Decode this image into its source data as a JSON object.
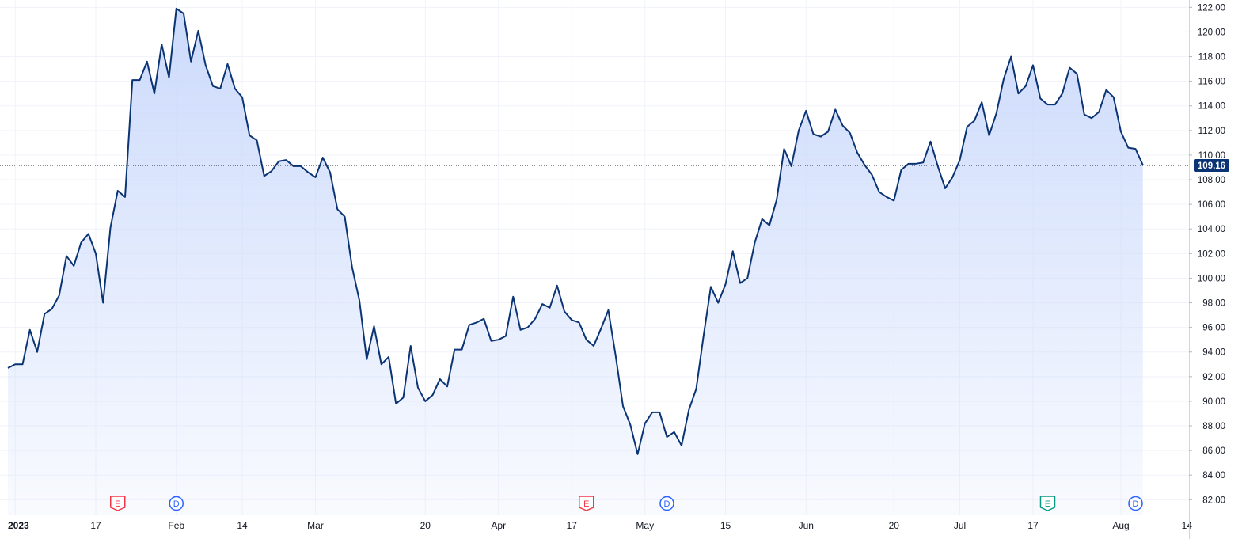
{
  "chart_data": {
    "type": "area",
    "title": "",
    "xlabel": "",
    "ylabel": "",
    "ylim": [
      80.8,
      122.6
    ],
    "grid": true,
    "y_ticks": [
      "82.00",
      "84.00",
      "86.00",
      "88.00",
      "90.00",
      "92.00",
      "94.00",
      "96.00",
      "98.00",
      "100.00",
      "102.00",
      "104.00",
      "106.00",
      "108.00",
      "110.00",
      "112.00",
      "114.00",
      "116.00",
      "118.00",
      "120.00",
      "122.00"
    ],
    "x_ticks": [
      {
        "label": "2023",
        "index": 1
      },
      {
        "label": "17",
        "index": 12
      },
      {
        "label": "Feb",
        "index": 23
      },
      {
        "label": "14",
        "index": 32
      },
      {
        "label": "Mar",
        "index": 42
      },
      {
        "label": "20",
        "index": 57
      },
      {
        "label": "Apr",
        "index": 67
      },
      {
        "label": "17",
        "index": 77
      },
      {
        "label": "May",
        "index": 87
      },
      {
        "label": "15",
        "index": 98
      },
      {
        "label": "Jun",
        "index": 109
      },
      {
        "label": "20",
        "index": 121
      },
      {
        "label": "Jul",
        "index": 130
      },
      {
        "label": "17",
        "index": 140
      },
      {
        "label": "Aug",
        "index": 152
      },
      {
        "label": "14",
        "index": 161
      }
    ],
    "last_value": 109.16,
    "last_value_label": "109.16",
    "accent_color": "#0b3475",
    "fill_color": "#d6e1fc",
    "series": [
      {
        "values": [
          92.7,
          93.0,
          93.0,
          95.8,
          94.0,
          97.1,
          97.5,
          98.6,
          101.8,
          101.0,
          102.9,
          103.6,
          102.0,
          98.0,
          104.1,
          107.1,
          106.6,
          116.1,
          116.1,
          117.6,
          115.0,
          119.0,
          116.3,
          121.9,
          121.5,
          117.6,
          120.1,
          117.3,
          115.6,
          115.4,
          117.4,
          115.4,
          114.7,
          111.6,
          111.2,
          108.3,
          108.7,
          109.5,
          109.6,
          109.1,
          109.1,
          108.6,
          108.2,
          109.8,
          108.6,
          105.6,
          105.0,
          100.9,
          98.2,
          93.4,
          96.1,
          93.0,
          93.6,
          89.8,
          90.3,
          94.5,
          91.1,
          90.0,
          90.5,
          91.8,
          91.2,
          94.2,
          94.2,
          96.2,
          96.4,
          96.7,
          94.9,
          95.0,
          95.3,
          98.5,
          95.8,
          96.0,
          96.7,
          97.9,
          97.6,
          99.4,
          97.3,
          96.6,
          96.4,
          95.0,
          94.5,
          95.9,
          97.4,
          93.7,
          89.6,
          88.1,
          85.7,
          88.2,
          89.1,
          89.1,
          87.1,
          87.5,
          86.4,
          89.3,
          91.0,
          95.3,
          99.3,
          98.0,
          99.5,
          102.2,
          99.6,
          100.0,
          102.9,
          104.8,
          104.3,
          106.4,
          110.5,
          109.1,
          112.0,
          113.6,
          111.7,
          111.5,
          111.9,
          113.7,
          112.4,
          111.8,
          110.2,
          109.2,
          108.4,
          107.0,
          106.6,
          106.3,
          108.8,
          109.3,
          109.3,
          109.4,
          111.1,
          109.1,
          107.3,
          108.2,
          109.6,
          112.3,
          112.8,
          114.3,
          111.6,
          113.4,
          116.2,
          118.0,
          115.0,
          115.6,
          117.3,
          114.6,
          114.1,
          114.1,
          115.0,
          117.1,
          116.6,
          113.3,
          113.0,
          113.5,
          115.3,
          114.7,
          111.9,
          110.6,
          110.5,
          109.2
        ]
      }
    ],
    "annotations": [
      {
        "label": "E",
        "kind": "earnings",
        "index": 15,
        "color": "#f23645"
      },
      {
        "label": "D",
        "kind": "dividend",
        "index": 23,
        "color": "#2962ff"
      },
      {
        "label": "E",
        "kind": "earnings",
        "index": 79,
        "color": "#f23645"
      },
      {
        "label": "D",
        "kind": "dividend",
        "index": 90,
        "color": "#2962ff"
      },
      {
        "label": "E",
        "kind": "earnings",
        "index": 142,
        "color": "#089981"
      },
      {
        "label": "D",
        "kind": "dividend",
        "index": 154,
        "color": "#2962ff"
      }
    ]
  }
}
